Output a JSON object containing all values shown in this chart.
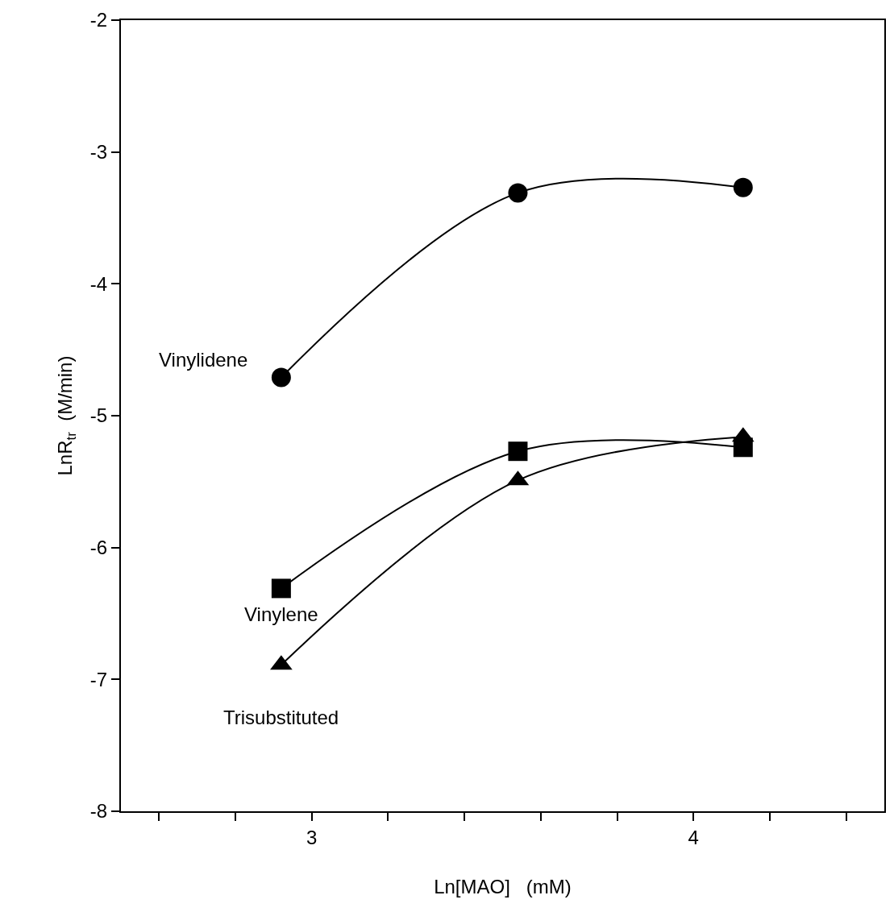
{
  "chart_data": {
    "type": "line",
    "xlabel": "Ln[MAO]   (mM)",
    "ylabel": "LnR$_{tr}$  (M/min)",
    "x": [
      2.92,
      3.54,
      4.13
    ],
    "series": [
      {
        "name": "Vinylidene",
        "color": "#000000",
        "marker": "circle",
        "values": [
          -4.71,
          -3.31,
          -3.27
        ]
      },
      {
        "name": "Vinylene",
        "color": "#000000",
        "marker": "square",
        "values": [
          -6.31,
          -5.27,
          -5.24
        ]
      },
      {
        "name": "Trisubstituted",
        "color": "#000000",
        "marker": "triangle",
        "values": [
          -6.89,
          -5.49,
          -5.16
        ]
      }
    ],
    "xlim": [
      2.5,
      4.5
    ],
    "ylim": [
      -8,
      -2
    ],
    "xticks": [
      {
        "value": 2.6,
        "label": null
      },
      {
        "value": 2.8,
        "label": null
      },
      3,
      {
        "value": 3.2,
        "label": null
      },
      {
        "value": 3.4,
        "label": null
      },
      {
        "value": 3.6,
        "label": null
      },
      {
        "value": 3.8,
        "label": null
      },
      4,
      {
        "value": 4.2,
        "label": null
      },
      {
        "value": 4.4,
        "label": null
      }
    ],
    "yticks": [
      -8,
      -7,
      -6,
      -5,
      -4,
      -3,
      -2
    ],
    "legend": false,
    "line_style": "solid"
  }
}
